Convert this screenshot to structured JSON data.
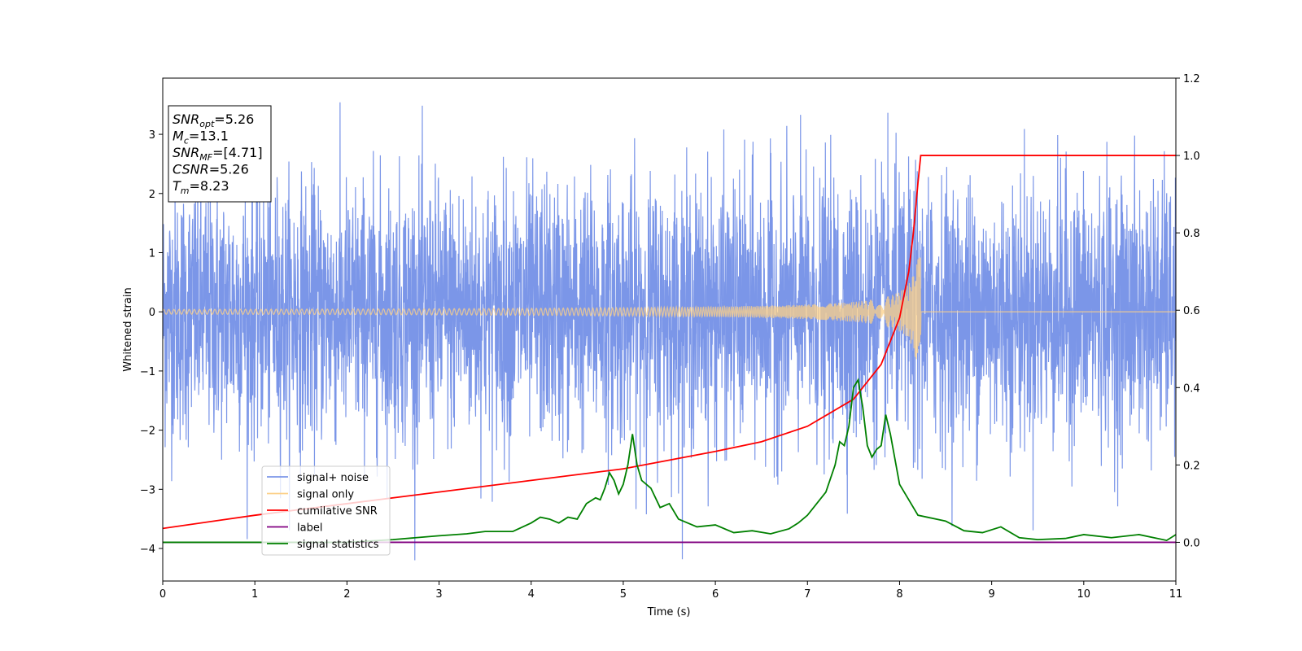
{
  "chart_data": {
    "type": "line",
    "xlabel": "Time (s)",
    "ylabel_left": "Whitened strain",
    "ylabel_right": "",
    "xlim": [
      0,
      11
    ],
    "ylim_left": [
      -4.55,
      3.95
    ],
    "ylim_right": [
      -0.1,
      1.2
    ],
    "x_ticks": [
      0,
      1,
      2,
      3,
      4,
      5,
      6,
      7,
      8,
      9,
      10,
      11
    ],
    "y_ticks_left": [
      -4,
      -3,
      -2,
      -1,
      0,
      1,
      2,
      3
    ],
    "y_ticks_right": [
      0.0,
      0.2,
      0.4,
      0.6,
      0.8,
      1.0,
      1.2
    ],
    "grid": false,
    "legend_position": "lower-left",
    "annotation_position": "upper-left",
    "annotation": [
      {
        "main": "SNR",
        "sub": "opt",
        "value": "=5.26"
      },
      {
        "main": "M",
        "sub": "c",
        "value": "=13.1"
      },
      {
        "main": "SNR",
        "sub": "MF",
        "value": "=[4.71]"
      },
      {
        "main": "CSNR",
        "sub": "",
        "value": "=5.26"
      },
      {
        "main": "T",
        "sub": "m",
        "value": "=8.23"
      }
    ],
    "series": [
      {
        "name": "signal+ noise",
        "color": "#7b96e8",
        "axis": "left",
        "description_values": {
          "mean": 0.0,
          "typical_amplitude": 1.4,
          "max": 3.6,
          "min": -4.2
        }
      },
      {
        "name": "signal only",
        "color": "#fcd088",
        "axis": "left",
        "chirp_end_time": 8.23,
        "peak_amplitude": 0.92,
        "start_amplitude": 0.04
      },
      {
        "name": "cumilative SNR",
        "color": "#ff0000",
        "axis": "right",
        "x": [
          0,
          1,
          2,
          3,
          4,
          5,
          6,
          6.5,
          7,
          7.5,
          7.8,
          8.0,
          8.1,
          8.15,
          8.2,
          8.23,
          11
        ],
        "y": [
          0.036,
          0.07,
          0.1,
          0.13,
          0.16,
          0.19,
          0.235,
          0.26,
          0.3,
          0.37,
          0.46,
          0.58,
          0.7,
          0.8,
          0.93,
          1.0,
          1.0
        ]
      },
      {
        "name": "label",
        "color": "#800080",
        "axis": "right",
        "x": [
          0,
          11
        ],
        "y": [
          0.0,
          0.0
        ]
      },
      {
        "name": "signal statistics",
        "color": "#008000",
        "axis": "right",
        "x": [
          0,
          2.0,
          2.5,
          3.0,
          3.3,
          3.5,
          3.8,
          4.0,
          4.1,
          4.2,
          4.3,
          4.4,
          4.5,
          4.6,
          4.7,
          4.75,
          4.8,
          4.85,
          4.9,
          4.95,
          5.0,
          5.05,
          5.1,
          5.15,
          5.2,
          5.3,
          5.4,
          5.5,
          5.6,
          5.8,
          6.0,
          6.2,
          6.4,
          6.6,
          6.8,
          6.9,
          7.0,
          7.1,
          7.2,
          7.3,
          7.35,
          7.4,
          7.45,
          7.5,
          7.55,
          7.6,
          7.65,
          7.7,
          7.75,
          7.8,
          7.85,
          7.9,
          8.0,
          8.1,
          8.2,
          8.3,
          8.5,
          8.7,
          8.9,
          9.1,
          9.3,
          9.5,
          9.8,
          10.0,
          10.3,
          10.6,
          10.9,
          11.0
        ],
        "y": [
          0.0,
          0.0,
          0.007,
          0.017,
          0.022,
          0.028,
          0.028,
          0.05,
          0.065,
          0.06,
          0.05,
          0.065,
          0.06,
          0.1,
          0.115,
          0.11,
          0.14,
          0.18,
          0.16,
          0.125,
          0.15,
          0.2,
          0.28,
          0.2,
          0.16,
          0.14,
          0.09,
          0.1,
          0.06,
          0.04,
          0.045,
          0.025,
          0.03,
          0.022,
          0.035,
          0.05,
          0.07,
          0.1,
          0.13,
          0.2,
          0.26,
          0.25,
          0.3,
          0.4,
          0.42,
          0.35,
          0.25,
          0.22,
          0.24,
          0.25,
          0.33,
          0.28,
          0.15,
          0.11,
          0.07,
          0.065,
          0.055,
          0.03,
          0.025,
          0.04,
          0.012,
          0.007,
          0.01,
          0.02,
          0.012,
          0.02,
          0.005,
          0.02
        ]
      }
    ]
  }
}
